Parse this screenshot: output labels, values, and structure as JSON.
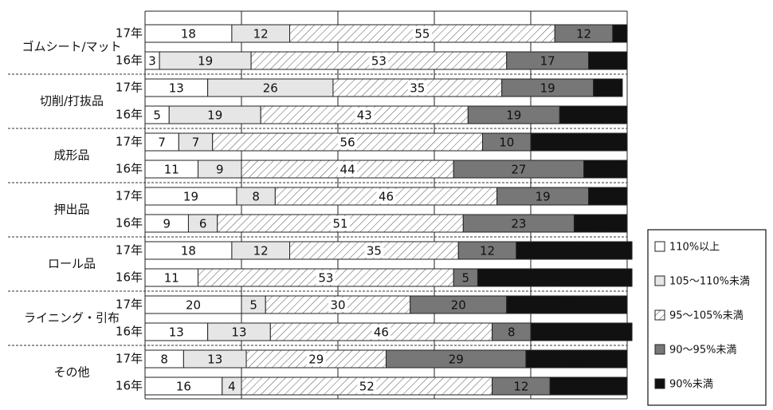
{
  "chart_data": {
    "type": "stacked-barh",
    "groups": [
      "ゴムシート/マット",
      "切削/打抜品",
      "成形品",
      "押出品",
      "ロール品",
      "ライニング・引布",
      "その他"
    ],
    "categories": [
      "17年",
      "16年",
      "17年",
      "16年",
      "17年",
      "16年",
      "17年",
      "16年",
      "17年",
      "16年",
      "17年",
      "16年",
      "17年",
      "16年"
    ],
    "series": [
      {
        "name": "110%以上",
        "color": "#ffffff",
        "values": [
          18,
          3,
          13,
          5,
          7,
          11,
          19,
          9,
          18,
          11,
          20,
          13,
          8,
          16
        ]
      },
      {
        "name": "105～110%未満",
        "color": "#e6e6e6",
        "values": [
          12,
          19,
          26,
          19,
          7,
          9,
          8,
          6,
          12,
          null,
          5,
          13,
          13,
          4
        ]
      },
      {
        "name": "95～105%未満",
        "color": "#ffffff",
        "pattern": "hatch",
        "values": [
          55,
          53,
          35,
          43,
          56,
          44,
          46,
          51,
          35,
          53,
          30,
          46,
          29,
          52
        ]
      },
      {
        "name": "90～95%未満",
        "color": "#777777",
        "values": [
          12,
          17,
          19,
          19,
          10,
          27,
          19,
          23,
          12,
          5,
          20,
          8,
          29,
          12
        ]
      },
      {
        "name": "90%未満",
        "color": "#111111",
        "values": [
          3,
          8,
          6,
          14,
          20,
          9,
          8,
          11,
          24,
          32,
          25,
          21,
          21,
          16
        ]
      }
    ],
    "xlim": [
      0,
      100
    ],
    "xticks": [
      0,
      20,
      40,
      60,
      80,
      100
    ],
    "grid": true
  }
}
